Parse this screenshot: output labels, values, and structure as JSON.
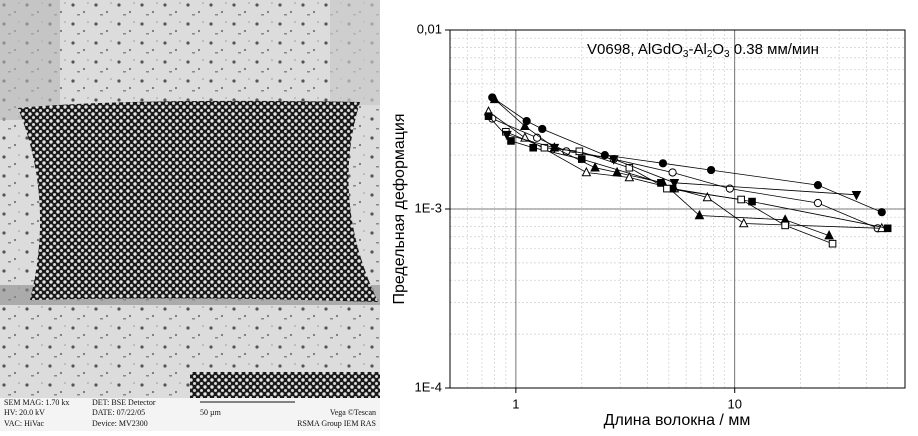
{
  "micrograph": {
    "info_left": [
      "SEM MAG: 1.70 kx",
      "HV:  20.0 kV",
      "VAC: HiVac"
    ],
    "info_middle": [
      "DET: BSE Detector",
      "DATE: 07/22/05",
      "Device: MV2300"
    ],
    "scale_label": "50 µm",
    "info_right": [
      "Vega ©Tescan",
      "RSMA Group IEM RAS"
    ]
  },
  "chart_data": {
    "type": "scatter",
    "annotation_parts": [
      "V0698, AlGdO",
      "3",
      "-Al",
      "2",
      "O",
      "3",
      " 0.38 мм/мин"
    ],
    "x_label": "Длина волокна / мм",
    "y_label": "Предельная деформация",
    "x_log": true,
    "y_log": true,
    "grid": true,
    "minor_grid": true,
    "xlim": [
      0.5,
      60
    ],
    "ylim": [
      0.0001,
      0.01
    ],
    "xticks": [
      1,
      10
    ],
    "yticks": [
      {
        "value": 0.0001,
        "label": "1E-4"
      },
      {
        "value": 0.001,
        "label": "1E-3"
      },
      {
        "value": 0.01,
        "label": "0,01"
      }
    ],
    "series": [
      {
        "marker": "circle",
        "filled": true,
        "color": "#000000",
        "x": [
          0.78,
          1.12,
          1.32,
          2.55,
          4.7,
          7.8,
          24,
          47
        ],
        "values": [
          0.0042,
          0.0031,
          0.0028,
          0.002,
          0.0018,
          0.00165,
          0.00136,
          0.00096
        ]
      },
      {
        "marker": "circle",
        "filled": false,
        "color": "#000000",
        "x": [
          0.78,
          1.25,
          1.7,
          2.8,
          5.2,
          9.5,
          24,
          45
        ],
        "values": [
          0.0032,
          0.0025,
          0.0021,
          0.0019,
          0.0016,
          0.0013,
          0.00108,
          0.00078
        ]
      },
      {
        "marker": "triangle",
        "filled": true,
        "color": "#000000",
        "x": [
          0.8,
          1.1,
          1.5,
          2.3,
          2.9,
          4.7,
          6.9,
          17,
          27
        ],
        "values": [
          0.0041,
          0.0029,
          0.0022,
          0.0017,
          0.0016,
          0.0014,
          0.00092,
          0.00087,
          0.00071
        ]
      },
      {
        "marker": "triangle",
        "filled": false,
        "color": "#000000",
        "x": [
          0.75,
          1.1,
          2.1,
          3.3,
          5.3,
          7.5,
          11,
          47
        ],
        "values": [
          0.0035,
          0.0025,
          0.0016,
          0.0015,
          0.0013,
          0.00116,
          0.00083,
          0.00078
        ]
      },
      {
        "marker": "square",
        "filled": true,
        "color": "#000000",
        "x": [
          0.75,
          0.95,
          1.2,
          2.0,
          4.6,
          5.2,
          12,
          50
        ],
        "values": [
          0.0033,
          0.0024,
          0.0022,
          0.0019,
          0.0014,
          0.0013,
          0.0011,
          0.00078
        ]
      },
      {
        "marker": "square",
        "filled": false,
        "color": "#000000",
        "x": [
          0.9,
          1.35,
          1.95,
          3.3,
          4.9,
          10.7,
          17,
          28
        ],
        "values": [
          0.0027,
          0.0022,
          0.0021,
          0.0017,
          0.0013,
          0.00113,
          0.00081,
          0.00064
        ]
      },
      {
        "marker": "triangle-down",
        "filled": true,
        "color": "#000000",
        "x": [
          0.91,
          1.5,
          2.8,
          5.3,
          36
        ],
        "values": [
          0.0026,
          0.0022,
          0.0019,
          0.0014,
          0.0012
        ]
      }
    ]
  }
}
